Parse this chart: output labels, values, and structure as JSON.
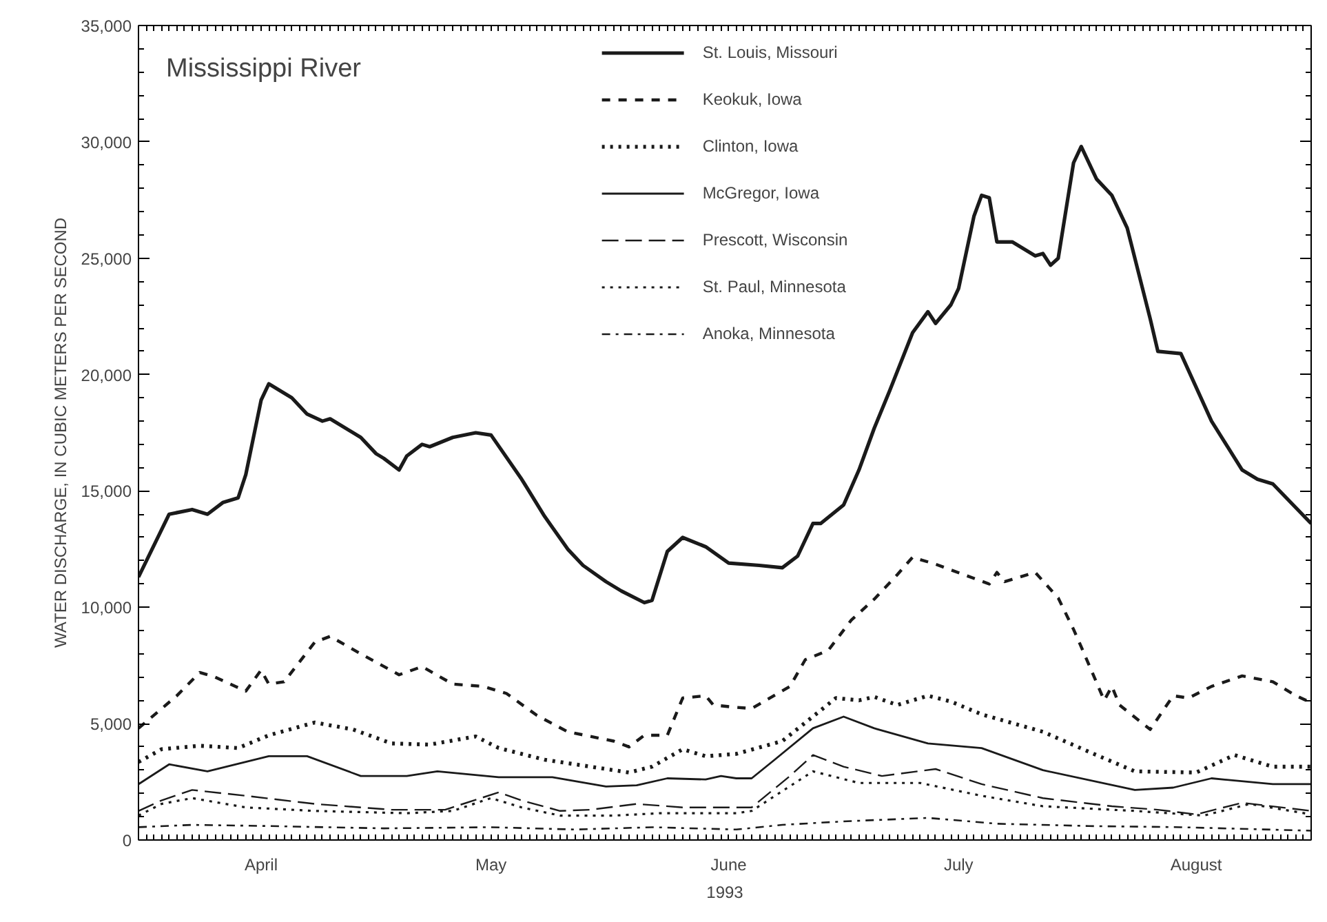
{
  "chart_data": {
    "type": "line",
    "title": "Mississippi River",
    "xlabel": "1993",
    "ylabel": "WATER DISCHARGE, IN CUBIC METERS PER SECOND",
    "xlim": [
      "1993-03-31",
      "1993-08-31"
    ],
    "xticks": [
      {
        "value": "1993-04-16",
        "label": "April"
      },
      {
        "value": "1993-05-16",
        "label": "May"
      },
      {
        "value": "1993-06-16",
        "label": "June"
      },
      {
        "value": "1993-07-16",
        "label": "July"
      },
      {
        "value": "1993-08-16",
        "label": "August"
      }
    ],
    "ylim": [
      0,
      35000
    ],
    "yticks": [
      {
        "value": 0,
        "label": "0"
      },
      {
        "value": 5000,
        "label": "5,000"
      },
      {
        "value": 10000,
        "label": "10,000"
      },
      {
        "value": 15000,
        "label": "15,000"
      },
      {
        "value": 20000,
        "label": "20,000"
      },
      {
        "value": 25000,
        "label": "25,000"
      },
      {
        "value": 30000,
        "label": "30,000"
      },
      {
        "value": 35000,
        "label": "35,000"
      }
    ],
    "grid": false,
    "legend": "top",
    "marker": "none",
    "series": [
      {
        "name": "St. Louis, Missouri",
        "color": "#1a1a1a",
        "line_style": "solid",
        "x": [
          "1993-03-31",
          "1993-04-04",
          "1993-04-07",
          "1993-04-09",
          "1993-04-11",
          "1993-04-13",
          "1993-04-14",
          "1993-04-16",
          "1993-04-17",
          "1993-04-20",
          "1993-04-22",
          "1993-04-24",
          "1993-04-25",
          "1993-04-29",
          "1993-05-01",
          "1993-05-02",
          "1993-05-04",
          "1993-05-05",
          "1993-05-07",
          "1993-05-08",
          "1993-05-11",
          "1993-05-14",
          "1993-05-16",
          "1993-05-20",
          "1993-05-23",
          "1993-05-26",
          "1993-05-28",
          "1993-05-31",
          "1993-06-02",
          "1993-06-05",
          "1993-06-06",
          "1993-06-08",
          "1993-06-10",
          "1993-06-13",
          "1993-06-16",
          "1993-06-20",
          "1993-06-23",
          "1993-06-25",
          "1993-06-27",
          "1993-06-28",
          "1993-07-01",
          "1993-07-03",
          "1993-07-05",
          "1993-07-07",
          "1993-07-10",
          "1993-07-12",
          "1993-07-13",
          "1993-07-15",
          "1993-07-16",
          "1993-07-18",
          "1993-07-19",
          "1993-07-20",
          "1993-07-21",
          "1993-07-23",
          "1993-07-26",
          "1993-07-27",
          "1993-07-28",
          "1993-07-29",
          "1993-07-31",
          "1993-08-01",
          "1993-08-03",
          "1993-08-05",
          "1993-08-07",
          "1993-08-10",
          "1993-08-11",
          "1993-08-14",
          "1993-08-18",
          "1993-08-22",
          "1993-08-24",
          "1993-08-26",
          "1993-08-31"
        ],
        "values": [
          11300,
          14000,
          14200,
          14000,
          14500,
          14700,
          15700,
          18900,
          19600,
          19000,
          18300,
          18000,
          18100,
          17300,
          16600,
          16400,
          15900,
          16500,
          17000,
          16900,
          17300,
          17500,
          17400,
          15500,
          13900,
          12500,
          11800,
          11100,
          10700,
          10200,
          10300,
          12400,
          13000,
          12600,
          11900,
          11800,
          11700,
          12200,
          13600,
          13600,
          14400,
          15900,
          17700,
          19300,
          21800,
          22700,
          22200,
          23000,
          23700,
          26800,
          27700,
          27600,
          25700,
          25700,
          25100,
          25200,
          24700,
          25000,
          29100,
          29800,
          28400,
          27700,
          26300,
          22400,
          21000,
          20900,
          18000,
          15900,
          15500,
          15300,
          13600
        ]
      },
      {
        "name": "Keokuk, Iowa",
        "color": "#1a1a1a",
        "line_style": "dashed",
        "x": [
          "1993-03-31",
          "1993-04-05",
          "1993-04-08",
          "1993-04-10",
          "1993-04-14",
          "1993-04-16",
          "1993-04-17",
          "1993-04-19",
          "1993-04-23",
          "1993-04-25",
          "1993-04-29",
          "1993-05-04",
          "1993-05-07",
          "1993-05-11",
          "1993-05-15",
          "1993-05-18",
          "1993-05-22",
          "1993-05-26",
          "1993-06-01",
          "1993-06-03",
          "1993-06-05",
          "1993-06-08",
          "1993-06-10",
          "1993-06-13",
          "1993-06-14",
          "1993-06-17",
          "1993-06-19",
          "1993-06-24",
          "1993-06-26",
          "1993-06-29",
          "1993-07-02",
          "1993-07-05",
          "1993-07-08",
          "1993-07-10",
          "1993-07-13",
          "1993-07-20",
          "1993-07-21",
          "1993-07-22",
          "1993-07-26",
          "1993-07-29",
          "1993-07-31",
          "1993-08-01",
          "1993-08-04",
          "1993-08-05",
          "1993-08-06",
          "1993-08-10",
          "1993-08-13",
          "1993-08-15",
          "1993-08-18",
          "1993-08-22",
          "1993-08-26",
          "1993-08-29",
          "1993-08-31"
        ],
        "values": [
          4800,
          6200,
          7200,
          7000,
          6400,
          7300,
          6700,
          6800,
          8500,
          8750,
          8000,
          7100,
          7450,
          6700,
          6600,
          6300,
          5350,
          4650,
          4250,
          4000,
          4500,
          4500,
          6100,
          6200,
          5800,
          5700,
          5650,
          6600,
          7750,
          8150,
          9450,
          10350,
          11400,
          12150,
          11850,
          11000,
          11500,
          11100,
          11500,
          10400,
          9050,
          8300,
          6000,
          6600,
          5800,
          4750,
          6200,
          6100,
          6600,
          7050,
          6800,
          6200,
          5900
        ]
      },
      {
        "name": "Clinton, Iowa",
        "color": "#1a1a1a",
        "line_style": "dotted",
        "x": [
          "1993-03-31",
          "1993-04-03",
          "1993-04-08",
          "1993-04-13",
          "1993-04-17",
          "1993-04-23",
          "1993-04-28",
          "1993-05-03",
          "1993-05-08",
          "1993-05-14",
          "1993-05-17",
          "1993-05-23",
          "1993-05-29",
          "1993-06-03",
          "1993-06-06",
          "1993-06-10",
          "1993-06-13",
          "1993-06-17",
          "1993-06-23",
          "1993-06-30",
          "1993-07-03",
          "1993-07-05",
          "1993-07-08",
          "1993-07-12",
          "1993-07-15",
          "1993-07-19",
          "1993-07-27",
          "1993-08-03",
          "1993-08-08",
          "1993-08-16",
          "1993-08-21",
          "1993-08-26",
          "1993-08-31"
        ],
        "values": [
          3350,
          3900,
          4050,
          3950,
          4500,
          5050,
          4750,
          4150,
          4100,
          4450,
          3950,
          3450,
          3150,
          2900,
          3150,
          3900,
          3600,
          3700,
          4250,
          6100,
          6000,
          6150,
          5800,
          6200,
          5950,
          5400,
          4650,
          3650,
          2950,
          2900,
          3650,
          3150,
          3150
        ]
      },
      {
        "name": "McGregor, Iowa",
        "color": "#1a1a1a",
        "line_style": "solid",
        "x": [
          "1993-03-31",
          "1993-04-04",
          "1993-04-09",
          "1993-04-17",
          "1993-04-22",
          "1993-04-29",
          "1993-05-05",
          "1993-05-09",
          "1993-05-17",
          "1993-05-24",
          "1993-05-31",
          "1993-06-04",
          "1993-06-08",
          "1993-06-13",
          "1993-06-15",
          "1993-06-17",
          "1993-06-19",
          "1993-06-22",
          "1993-06-27",
          "1993-07-01",
          "1993-07-05",
          "1993-07-12",
          "1993-07-19",
          "1993-07-27",
          "1993-08-08",
          "1993-08-13",
          "1993-08-18",
          "1993-08-26",
          "1993-08-31"
        ],
        "values": [
          2400,
          3250,
          2950,
          3600,
          3600,
          2750,
          2750,
          2950,
          2700,
          2700,
          2300,
          2350,
          2650,
          2600,
          2750,
          2650,
          2650,
          3450,
          4800,
          5300,
          4800,
          4150,
          3950,
          3000,
          2150,
          2250,
          2650,
          2400,
          2400
        ]
      },
      {
        "name": "Prescott, Wisconsin",
        "color": "#1a1a1a",
        "line_style": "dashed",
        "x": [
          "1993-03-31",
          "1993-04-03",
          "1993-04-07",
          "1993-04-14",
          "1993-04-23",
          "1993-05-03",
          "1993-05-10",
          "1993-05-17",
          "1993-05-20",
          "1993-05-25",
          "1993-05-29",
          "1993-06-04",
          "1993-06-10",
          "1993-06-17",
          "1993-06-19",
          "1993-06-24",
          "1993-06-27",
          "1993-07-01",
          "1993-07-06",
          "1993-07-13",
          "1993-07-19",
          "1993-07-27",
          "1993-08-05",
          "1993-08-11",
          "1993-08-16",
          "1993-08-22",
          "1993-08-31"
        ],
        "values": [
          1250,
          1700,
          2150,
          1900,
          1550,
          1300,
          1300,
          2050,
          1700,
          1250,
          1300,
          1550,
          1400,
          1400,
          1400,
          2750,
          3650,
          3150,
          2750,
          3050,
          2400,
          1800,
          1450,
          1300,
          1100,
          1600,
          1250
        ]
      },
      {
        "name": "St. Paul, Minnesota",
        "color": "#1a1a1a",
        "line_style": "dotted",
        "x": [
          "1993-03-31",
          "1993-04-03",
          "1993-04-07",
          "1993-04-14",
          "1993-04-23",
          "1993-05-05",
          "1993-05-11",
          "1993-05-16",
          "1993-05-20",
          "1993-05-25",
          "1993-06-01",
          "1993-06-07",
          "1993-06-17",
          "1993-06-19",
          "1993-06-27",
          "1993-07-03",
          "1993-07-11",
          "1993-07-19",
          "1993-07-27",
          "1993-08-08",
          "1993-08-17",
          "1993-08-23",
          "1993-08-31"
        ],
        "values": [
          1050,
          1550,
          1800,
          1400,
          1250,
          1150,
          1250,
          1800,
          1400,
          1050,
          1050,
          1150,
          1150,
          1250,
          2950,
          2450,
          2450,
          1900,
          1450,
          1250,
          1050,
          1550,
          1100
        ]
      },
      {
        "name": "Anoka, Minnesota",
        "color": "#1a1a1a",
        "line_style": "dashdot",
        "x": [
          "1993-03-31",
          "1993-04-07",
          "1993-04-17",
          "1993-05-02",
          "1993-05-16",
          "1993-05-27",
          "1993-06-06",
          "1993-06-17",
          "1993-06-23",
          "1993-07-01",
          "1993-07-12",
          "1993-07-21",
          "1993-08-02",
          "1993-08-14",
          "1993-08-31"
        ],
        "values": [
          550,
          650,
          600,
          500,
          550,
          450,
          550,
          450,
          650,
          800,
          950,
          700,
          600,
          550,
          400
        ]
      }
    ]
  }
}
